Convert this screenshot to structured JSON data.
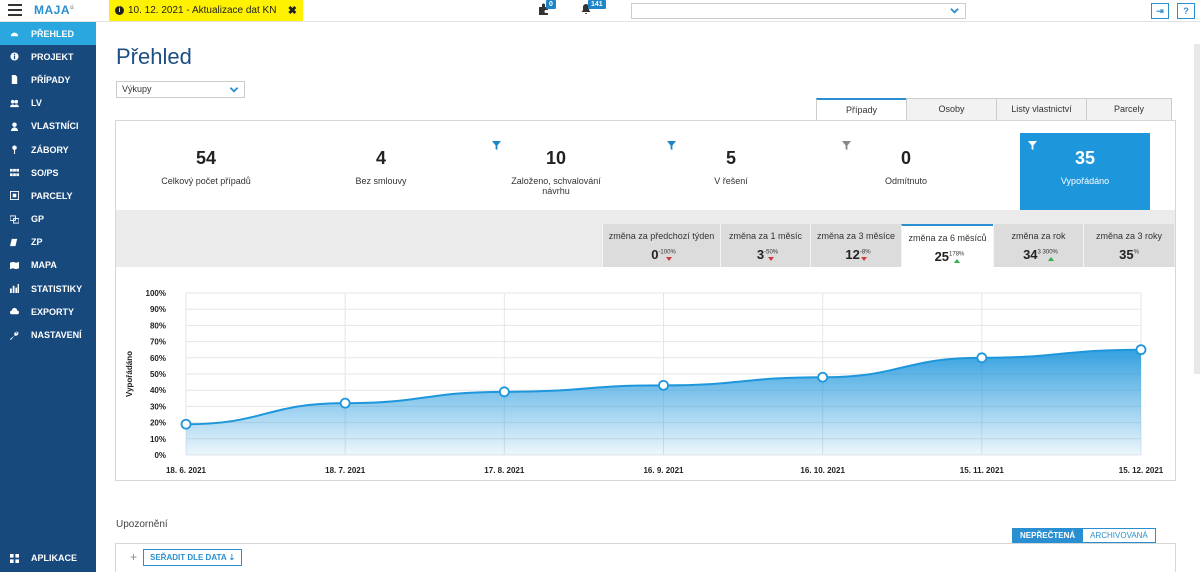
{
  "app": {
    "logo": "MAJA",
    "logo_sup": "ú"
  },
  "notice": {
    "text": "10. 12. 2021 - Aktualizace dat KN",
    "close": "✖"
  },
  "topbar": {
    "puzzle_badge": "0",
    "bell_badge": "141",
    "help_label": "?",
    "logout_label": "⇥"
  },
  "sidebar": {
    "items": [
      {
        "label": "PŘEHLED",
        "icon": "dashboard-icon",
        "active": true
      },
      {
        "label": "PROJEKT",
        "icon": "info-icon"
      },
      {
        "label": "PŘÍPADY",
        "icon": "file-icon"
      },
      {
        "label": "LV",
        "icon": "users-icon"
      },
      {
        "label": "VLASTNÍCI",
        "icon": "user-icon"
      },
      {
        "label": "ZÁBORY",
        "icon": "pin-icon"
      },
      {
        "label": "SO/PS",
        "icon": "grid-icon"
      },
      {
        "label": "PARCELY",
        "icon": "parcel-icon"
      },
      {
        "label": "GP",
        "icon": "gp-icon"
      },
      {
        "label": "ZP",
        "icon": "zp-icon"
      },
      {
        "label": "MAPA",
        "icon": "map-icon"
      },
      {
        "label": "STATISTIKY",
        "icon": "stats-icon"
      },
      {
        "label": "EXPORTY",
        "icon": "cloud-icon"
      },
      {
        "label": "NASTAVENÍ",
        "icon": "wrench-icon"
      }
    ],
    "bottom": {
      "label": "APLIKACE",
      "icon": "apps-icon"
    }
  },
  "main": {
    "title": "Přehled",
    "type_select": "Výkupy",
    "tabs": [
      "Případy",
      "Osoby",
      "Listy vlastnictví",
      "Parcely"
    ],
    "stats": [
      {
        "value": "54",
        "label": "Celkový počet případů",
        "filter": false
      },
      {
        "value": "4",
        "label": "Bez smlouvy",
        "filter": false
      },
      {
        "value": "10",
        "label": "Založeno, schvalování návrhu",
        "filter": true
      },
      {
        "value": "5",
        "label": "V řešení",
        "filter": true
      },
      {
        "value": "0",
        "label": "Odmítnuto",
        "filter": true
      },
      {
        "value": "35",
        "label": "Vypořádáno",
        "filter": true,
        "selected": true
      }
    ],
    "changes": [
      {
        "label": "změna za předchozí týden",
        "value": "0",
        "pct": "-100%",
        "dir": "down"
      },
      {
        "label": "změna za 1 měsíc",
        "value": "3",
        "pct": "-50%",
        "dir": "down"
      },
      {
        "label": "změna za 3 měsíce",
        "value": "12",
        "pct": "-8%",
        "dir": "down"
      },
      {
        "label": "změna za 6 měsíců",
        "value": "25",
        "pct": "178%",
        "dir": "up",
        "active": true
      },
      {
        "label": "změna za rok",
        "value": "34",
        "pct": "3 300%",
        "dir": "up"
      },
      {
        "label": "změna za 3 roky",
        "value": "35",
        "pct": "%",
        "dir": "none"
      }
    ],
    "warnings": {
      "title": "Upozornění",
      "tab_unread": "NEPŘEČTENÁ",
      "tab_archived": "ARCHIVOVANÁ",
      "sort_label": "SEŘADIT DLE DATA"
    }
  },
  "colors": {
    "accent": "#2a8fd0",
    "sidebar": "#17497d",
    "sidebar_active": "#2aa7df",
    "selected_stat": "#1e96dc",
    "notice": "#fff200",
    "line": "#1e96dc"
  },
  "chart_data": {
    "type": "area",
    "x": [
      "18. 6. 2021",
      "18. 7. 2021",
      "17. 8. 2021",
      "16. 9. 2021",
      "16. 10. 2021",
      "15. 11. 2021",
      "15. 12. 2021"
    ],
    "series": [
      {
        "values": [
          19,
          32,
          39,
          43,
          48,
          60,
          65
        ]
      }
    ],
    "ylabel": "Vypořádáno",
    "yticks": [
      "0%",
      "10%",
      "20%",
      "30%",
      "40%",
      "50%",
      "60%",
      "70%",
      "80%",
      "90%",
      "100%"
    ],
    "ylim": [
      0,
      100
    ],
    "grid": true
  }
}
